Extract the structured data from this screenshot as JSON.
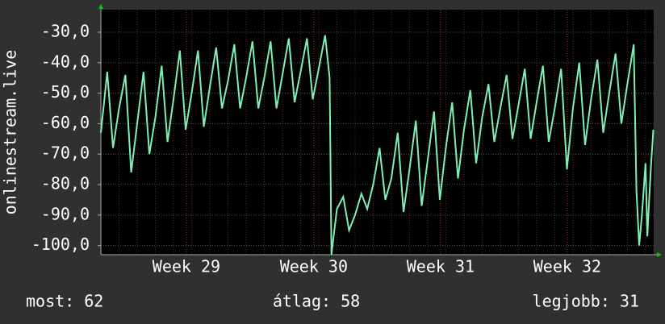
{
  "chart_data": {
    "type": "line",
    "y_label": "onlinestream.live",
    "x": [
      0,
      0.35,
      0.67,
      1,
      1.35,
      1.67,
      2,
      2.35,
      2.67,
      3,
      3.35,
      3.67,
      4,
      4.35,
      4.67,
      5,
      5.35,
      5.67,
      6,
      6.35,
      6.67,
      7,
      7.35,
      7.67,
      8,
      8.35,
      8.67,
      9,
      9.35,
      9.67,
      10,
      10.35,
      10.67,
      11,
      11.35,
      11.67,
      12,
      12.35,
      12.6,
      12.7,
      13,
      13.35,
      13.67,
      14,
      14.35,
      14.67,
      15,
      15.35,
      15.67,
      16,
      16.35,
      16.67,
      17,
      17.35,
      17.67,
      18,
      18.35,
      18.67,
      19,
      19.35,
      19.67,
      20,
      20.35,
      20.67,
      21,
      21.35,
      21.67,
      22,
      22.35,
      22.67,
      23,
      23.35,
      23.67,
      24,
      24.35,
      24.67,
      25,
      25.35,
      25.67,
      26,
      26.35,
      26.67,
      27,
      27.35,
      27.67,
      28,
      28.35,
      28.67,
      29,
      29.35,
      29.5,
      29.65,
      29.8,
      30,
      30.1,
      30.2,
      30.3,
      30.43
    ],
    "series": [
      {
        "name": "onlinestream.live",
        "color": "#7ff0b4",
        "values": [
          -63,
          -43,
          -68,
          -55,
          -44,
          -76,
          -60,
          -43,
          -70,
          -58,
          -41,
          -66,
          -52,
          -36,
          -62,
          -50,
          -36,
          -61,
          -48,
          -35,
          -55,
          -46,
          -34,
          -55,
          -45,
          -33,
          -55,
          -45,
          -33,
          -55,
          -44,
          -32,
          -53,
          -43,
          -32,
          -52,
          -42,
          -31,
          -45,
          -103,
          -88,
          -84,
          -95,
          -90,
          -83,
          -88,
          -80,
          -68,
          -85,
          -78,
          -63,
          -89,
          -75,
          -59,
          -87,
          -72,
          -56,
          -85,
          -68,
          -53,
          -78,
          -62,
          -49,
          -73,
          -58,
          -47,
          -66,
          -55,
          -44,
          -65,
          -54,
          -42,
          -65,
          -53,
          -41,
          -66,
          -55,
          -42,
          -75,
          -55,
          -40,
          -67,
          -52,
          -39,
          -63,
          -50,
          -37,
          -60,
          -47,
          -34,
          -82,
          -100,
          -90,
          -73,
          -97,
          -85,
          -74,
          -62
        ]
      }
    ],
    "xlim": [
      0,
      30.45
    ],
    "xticks": [
      {
        "value": 4.71,
        "label": "Week 29"
      },
      {
        "value": 11.73,
        "label": "Week 30"
      },
      {
        "value": 18.71,
        "label": "Week 31"
      },
      {
        "value": 25.69,
        "label": "Week 32"
      }
    ],
    "ylim": [
      -103,
      -22.6
    ],
    "yticks": [
      {
        "value": -30,
        "label": "-30,0"
      },
      {
        "value": -40,
        "label": "-40,0"
      },
      {
        "value": -50,
        "label": "-50,0"
      },
      {
        "value": -60,
        "label": "-60,0"
      },
      {
        "value": -70,
        "label": "-70,0"
      },
      {
        "value": -80,
        "label": "-80,0"
      },
      {
        "value": -90,
        "label": "-90,0"
      },
      {
        "value": -100,
        "label": "-100,0"
      }
    ],
    "grid": true,
    "footer": [
      "most: 62",
      "átlag: 58",
      "legjobb: 31"
    ]
  }
}
